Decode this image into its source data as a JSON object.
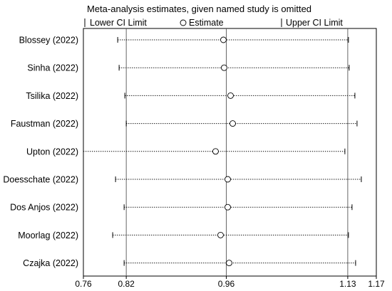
{
  "chart_data": {
    "type": "forest",
    "title": "Meta-analysis estimates, given named study is omitted",
    "legend": {
      "lower": "Lower CI Limit",
      "estimate": "Estimate",
      "upper": "Upper CI Limit"
    },
    "xlim": [
      0.76,
      1.17
    ],
    "x_ticks": [
      0.76,
      0.82,
      0.96,
      1.13,
      1.17
    ],
    "x_tick_labels": [
      "0.76",
      "0.82",
      "0.96",
      "1.13",
      "1.17"
    ],
    "reference_lines": [
      0.82,
      0.96,
      1.13
    ],
    "grid": false,
    "studies": [
      {
        "label": "Blossey  (2022)",
        "estimate": 0.956,
        "lower": 0.808,
        "upper": 1.131
      },
      {
        "label": "Sinha  (2022)",
        "estimate": 0.957,
        "lower": 0.81,
        "upper": 1.132
      },
      {
        "label": "Tsilika  (2022)",
        "estimate": 0.966,
        "lower": 0.818,
        "upper": 1.14
      },
      {
        "label": "Faustman  (2022)",
        "estimate": 0.969,
        "lower": 0.82,
        "upper": 1.143
      },
      {
        "label": "Upton  (2022)",
        "estimate": 0.945,
        "lower": 0.76,
        "upper": 1.126
      },
      {
        "label": "Doesschate  (2022)",
        "estimate": 0.962,
        "lower": 0.805,
        "upper": 1.149
      },
      {
        "label": "Dos Anjos  (2022)",
        "estimate": 0.962,
        "lower": 0.817,
        "upper": 1.136
      },
      {
        "label": "Moorlag  (2022)",
        "estimate": 0.952,
        "lower": 0.801,
        "upper": 1.131
      },
      {
        "label": "Czajka  (2022)",
        "estimate": 0.964,
        "lower": 0.817,
        "upper": 1.141
      }
    ]
  }
}
